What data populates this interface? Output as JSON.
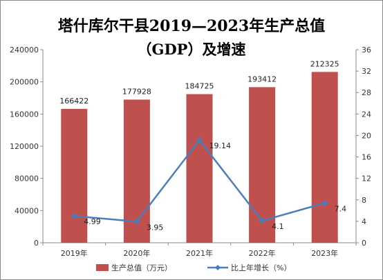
{
  "title": {
    "line1": "塔什库尔干县2019—2023年生产总值",
    "line2": "（GDP）及增速"
  },
  "chart_data": {
    "type": "bar",
    "categories": [
      "2019年",
      "2020年",
      "2021年",
      "2022年",
      "2023年"
    ],
    "series": [
      {
        "name": "生产总值（万元）",
        "type": "bar",
        "axis": "left",
        "color": "#c0504d",
        "values": [
          166422,
          177928,
          184725,
          193412,
          212325
        ]
      },
      {
        "name": "比上年增长（%）",
        "type": "line",
        "axis": "right",
        "color": "#4a7ebb",
        "values": [
          4.99,
          3.95,
          19.14,
          4.1,
          7.4
        ]
      }
    ],
    "y_left": {
      "min": 0,
      "max": 240000,
      "ticks": [
        0,
        40000,
        80000,
        120000,
        160000,
        200000,
        240000
      ]
    },
    "y_right": {
      "min": 0,
      "max": 36,
      "ticks": [
        0,
        4,
        8,
        12,
        16,
        20,
        24,
        28,
        32,
        36
      ]
    },
    "grid": false,
    "legend": "bottom"
  }
}
